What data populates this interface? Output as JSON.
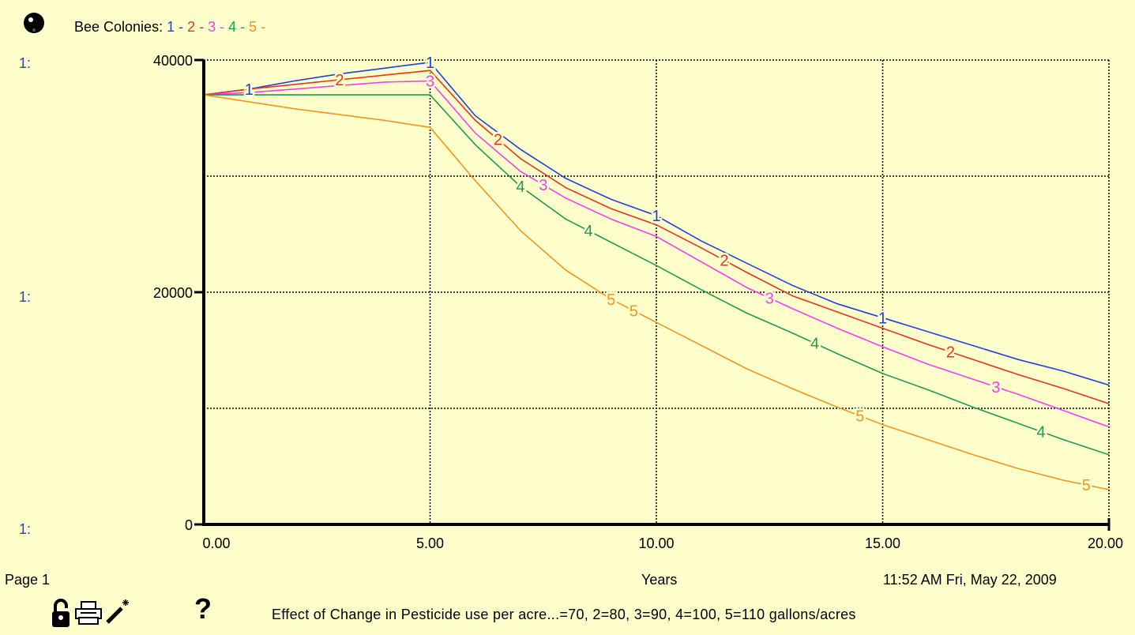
{
  "legend": {
    "prefix": "Bee  Colonies:",
    "items": [
      {
        "key": "1",
        "color": "#1F3FE0"
      },
      {
        "key": "2",
        "color": "#E8321E"
      },
      {
        "key": "3",
        "color": "#F040F0"
      },
      {
        "key": "4",
        "color": "#1E9A55"
      },
      {
        "key": "5",
        "color": "#F0961E"
      }
    ],
    "separator": "-"
  },
  "yaxis_scale_prefix": "1:",
  "footer": {
    "page_label": "Page 1",
    "xlabel": "Years",
    "timestamp": "11:52 AM   Fri, May 22, 2009",
    "caption": "Effect of Change in Pesticide use per acre...=70, 2=80, 3=90, 4=100, 5=110 gallons/acres"
  },
  "icons": {
    "lock": "lock-icon",
    "print": "printer-icon",
    "wand": "magic-wand-icon",
    "help": "help-icon",
    "help_glyph": "?"
  },
  "colors": {
    "background": "#FFFFCC",
    "series_1": "#1F3FE0",
    "series_2": "#E8321E",
    "series_3": "#F040F0",
    "series_4": "#1E9A55",
    "series_5": "#F0961E"
  },
  "chart_data": {
    "type": "line",
    "title": "",
    "xlabel": "Years",
    "ylabel": "",
    "xlim": [
      0,
      20
    ],
    "ylim": [
      0,
      40000
    ],
    "x_ticks": [
      "0.00",
      "5.00",
      "10.00",
      "15.00",
      "20.00"
    ],
    "y_tick_labels": [
      "40000",
      "20000",
      "0"
    ],
    "y_gridlines": [
      10000,
      20000,
      30000,
      40000
    ],
    "grid": true,
    "x": [
      0,
      1,
      2,
      3,
      4,
      5,
      6,
      7,
      8,
      9,
      10,
      11,
      12,
      13,
      14,
      15,
      16,
      17,
      18,
      19,
      20
    ],
    "series": [
      {
        "name": "1",
        "color": "#1F3FE0",
        "label_x": [
          1,
          5,
          10,
          15
        ],
        "values": [
          37000,
          37500,
          38200,
          38800,
          39300,
          39800,
          35200,
          32300,
          29800,
          28000,
          26600,
          24400,
          22500,
          20600,
          19000,
          17800,
          16600,
          15400,
          14200,
          13200,
          12000
        ]
      },
      {
        "name": "2",
        "color": "#E8321E",
        "label_x": [
          3,
          6.5,
          11.5,
          16.5
        ],
        "values": [
          37000,
          37500,
          37900,
          38300,
          38700,
          39100,
          34800,
          31500,
          29000,
          27200,
          25800,
          23800,
          21700,
          19700,
          18300,
          16900,
          15500,
          14200,
          12900,
          11700,
          10400
        ]
      },
      {
        "name": "3",
        "color": "#F040F0",
        "label_x": [
          5,
          7.5,
          12.5,
          17.5
        ],
        "values": [
          37000,
          37200,
          37500,
          37800,
          38100,
          38200,
          33700,
          30400,
          28100,
          26300,
          24800,
          22600,
          20400,
          18600,
          16900,
          15300,
          13800,
          12500,
          11200,
          9800,
          8400
        ]
      },
      {
        "name": "4",
        "color": "#1E9A55",
        "label_x": [
          7,
          8.5,
          13.5,
          18.5
        ],
        "values": [
          37000,
          37000,
          37000,
          37000,
          37000,
          37000,
          32700,
          29100,
          26300,
          24300,
          22300,
          20200,
          18200,
          16500,
          14700,
          13000,
          11600,
          10100,
          8700,
          7300,
          6000
        ]
      },
      {
        "name": "5",
        "color": "#F0961E",
        "label_x": [
          9,
          9.5,
          14.5,
          19.5
        ],
        "values": [
          37000,
          36400,
          35800,
          35300,
          34800,
          34200,
          29600,
          25300,
          21900,
          19400,
          17400,
          15400,
          13400,
          11700,
          10100,
          8600,
          7300,
          6000,
          4800,
          3800,
          3000
        ]
      }
    ]
  }
}
